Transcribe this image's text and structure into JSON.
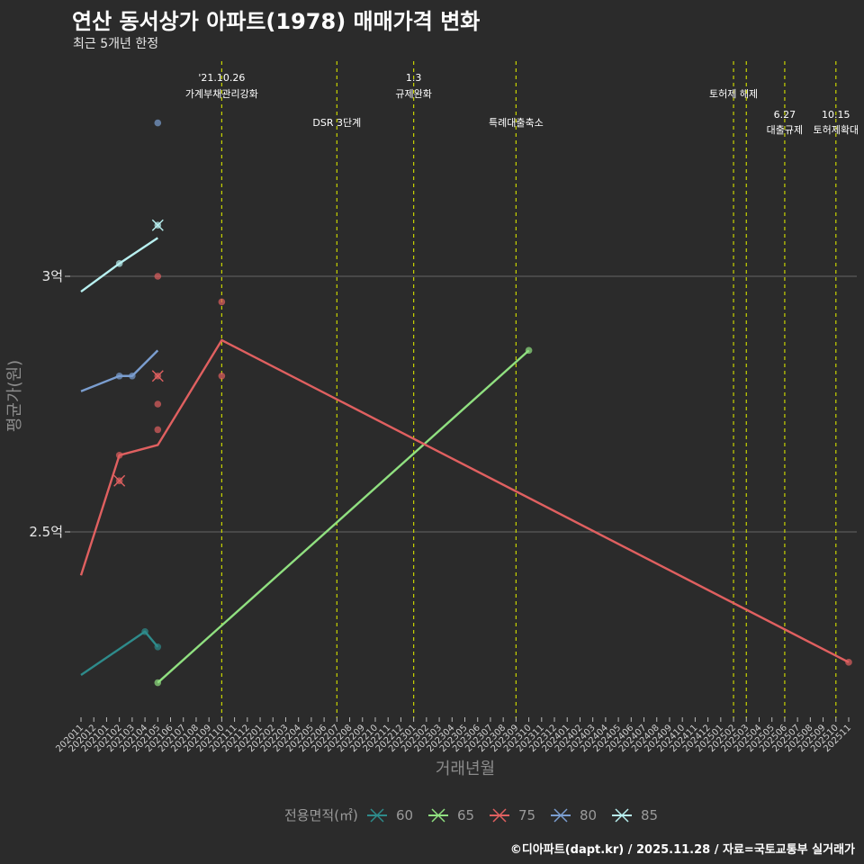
{
  "header": {
    "title": "연산 동서상가 아파트(1978) 매매가격 변화",
    "subtitle": "최근 5개년 한정"
  },
  "caption": "©디아파트(dapt.kr) / 2025.11.28 / 자료=국토교통부 실거래가",
  "colors": {
    "background": "#2b2b2b",
    "grid": "#5a5a5a",
    "event_line": "#c8d400",
    "60": "#2e8b8b",
    "65": "#90e080",
    "75": "#e06060",
    "80": "#7b9ed0",
    "85": "#b8f0f0"
  },
  "chart_data": {
    "type": "line",
    "title": "연산 동서상가 아파트(1978) 매매가격 변화",
    "xlabel": "거래년월",
    "ylabel": "평균가(원)",
    "ylim": [
      2.15,
      3.45
    ],
    "yticks": [
      {
        "value": 2.5,
        "label": "2.5억"
      },
      {
        "value": 3.0,
        "label": "3억"
      }
    ],
    "grid": true,
    "categories": [
      "202011",
      "202012",
      "202101",
      "202102",
      "202103",
      "202104",
      "202105",
      "202106",
      "202107",
      "202108",
      "202109",
      "202110",
      "202111",
      "202112",
      "202201",
      "202202",
      "202203",
      "202204",
      "202205",
      "202206",
      "202207",
      "202208",
      "202209",
      "202210",
      "202211",
      "202212",
      "202301",
      "202302",
      "202303",
      "202304",
      "202305",
      "202306",
      "202307",
      "202308",
      "202309",
      "202310",
      "202311",
      "202312",
      "202401",
      "202402",
      "202403",
      "202404",
      "202405",
      "202406",
      "202407",
      "202408",
      "202409",
      "202410",
      "202411",
      "202412",
      "202501",
      "202502",
      "202503",
      "202504",
      "202505",
      "202506",
      "202507",
      "202508",
      "202509",
      "202510",
      "202511"
    ],
    "series": [
      {
        "name": "60",
        "color": "#2e8b8b",
        "line": [
          [
            "202011",
            2.22
          ],
          [
            "202104",
            2.305
          ],
          [
            "202105",
            2.275
          ]
        ],
        "points": [
          [
            "202104",
            2.305
          ],
          [
            "202105",
            2.275
          ]
        ],
        "crosses": []
      },
      {
        "name": "65",
        "color": "#90e080",
        "line": [
          [
            "202105",
            2.205
          ],
          [
            "202310",
            2.855
          ]
        ],
        "points": [
          [
            "202105",
            2.205
          ],
          [
            "202310",
            2.855
          ]
        ],
        "crosses": []
      },
      {
        "name": "75",
        "color": "#e06060",
        "line": [
          [
            "202011",
            2.415
          ],
          [
            "202102",
            2.65
          ],
          [
            "202105",
            2.67
          ],
          [
            "202110",
            2.875
          ],
          [
            "202511",
            2.245
          ]
        ],
        "points": [
          [
            "202102",
            2.65
          ],
          [
            "202105",
            2.75
          ],
          [
            "202105",
            2.7
          ],
          [
            "202105",
            3.0
          ],
          [
            "202110",
            2.95
          ],
          [
            "202110",
            2.805
          ],
          [
            "202511",
            2.245
          ]
        ],
        "crosses": [
          [
            "202102",
            2.6
          ],
          [
            "202105",
            2.805
          ]
        ]
      },
      {
        "name": "80",
        "color": "#7b9ed0",
        "line": [
          [
            "202011",
            2.775
          ],
          [
            "202102",
            2.805
          ],
          [
            "202103",
            2.805
          ],
          [
            "202105",
            2.855
          ]
        ],
        "points": [
          [
            "202102",
            2.805
          ],
          [
            "202103",
            2.805
          ],
          [
            "202105",
            3.3
          ]
        ],
        "crosses": []
      },
      {
        "name": "85",
        "color": "#b8f0f0",
        "line": [
          [
            "202011",
            2.97
          ],
          [
            "202102",
            3.025
          ],
          [
            "202105",
            3.075
          ]
        ],
        "points": [
          [
            "202102",
            3.025
          ]
        ],
        "crosses": [
          [
            "202105",
            3.1
          ]
        ]
      }
    ],
    "events": [
      {
        "x": "202110",
        "label1": "'21.10.26",
        "label2": "가계부채관리강화",
        "row": 0
      },
      {
        "x": "202207",
        "label1": "",
        "label2": "DSR 3단계",
        "row": 1
      },
      {
        "x": "202301",
        "label1": "1.3",
        "label2": "규제완화",
        "row": 0
      },
      {
        "x": "202309",
        "label1": "",
        "label2": "특례대출축소",
        "row": 1
      },
      {
        "x": "202502",
        "label1": "",
        "label2": "토허제 해제",
        "row": 0
      },
      {
        "x": "202503",
        "label1": "",
        "label2": "",
        "row": 0
      },
      {
        "x": "202506",
        "label1": "6.27",
        "label2": "대출규제",
        "row": 2
      },
      {
        "x": "202510",
        "label1": "10.15",
        "label2": "토허제확대",
        "row": 2
      }
    ],
    "legend": {
      "title": "전용면적(㎡)",
      "position": "bottom",
      "items": [
        "60",
        "65",
        "75",
        "80",
        "85"
      ]
    }
  }
}
